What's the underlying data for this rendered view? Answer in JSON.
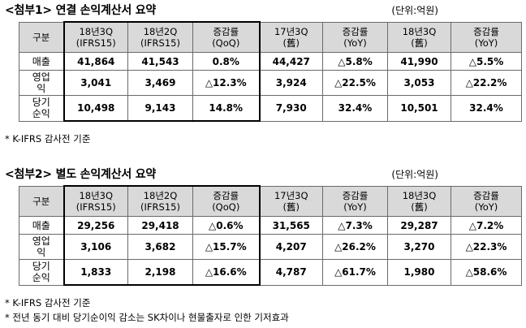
{
  "tables": [
    {
      "title": "<첨부1> 연결 손익계산서 요약",
      "unit": "(단위:억원)",
      "headers": [
        "구분",
        "18년3Q\n(IFRS15)",
        "18년2Q\n(IFRS15)",
        "증감률\n(QoQ)",
        "17년3Q\n(舊)",
        "증감률\n(YoY)",
        "18년3Q\n(舊)",
        "증감률\n(YoY)"
      ],
      "rows": [
        {
          "label": "매출",
          "values": [
            "41,864",
            "41,543",
            "0.8%",
            "44,427",
            "△5.8%",
            "41,990",
            "△5.5%"
          ]
        },
        {
          "label": "영업\n익",
          "values": [
            "3,041",
            "3,469",
            "△12.3%",
            "3,924",
            "△22.5%",
            "3,053",
            "△22.2%"
          ]
        },
        {
          "label": "당기\n순익",
          "values": [
            "10,498",
            "9,143",
            "14.8%",
            "7,930",
            "32.4%",
            "10,501",
            "32.4%"
          ]
        }
      ],
      "notes": [
        "* K-IFRS 감사전 기준"
      ]
    },
    {
      "title": "<첨부2> 별도 손익계산서 요약",
      "unit": "(단위:억원)",
      "headers": [
        "구분",
        "18년3Q\n(IFRS15)",
        "18년2Q\n(IFRS15)",
        "증감률\n(QoQ)",
        "17년3Q\n(舊)",
        "증감률\n(YoY)",
        "18년3Q\n(舊)",
        "증감률\n(YoY)"
      ],
      "rows": [
        {
          "label": "매출",
          "values": [
            "29,256",
            "29,418",
            "△0.6%",
            "31,565",
            "△7.3%",
            "29,287",
            "△7.2%"
          ]
        },
        {
          "label": "영업\n익",
          "values": [
            "3,106",
            "3,682",
            "△15.7%",
            "4,207",
            "△26.2%",
            "3,270",
            "△22.3%"
          ]
        },
        {
          "label": "당기\n순익",
          "values": [
            "1,833",
            "2,198",
            "△16.6%",
            "4,787",
            "△61.7%",
            "1,980",
            "△58.6%"
          ]
        }
      ],
      "notes": [
        "* K-IFRS 감사전 기준",
        "* 전년 동기 대비 당기순이익 감소는 SK차이나 현물출자로 인한 기저효과"
      ]
    }
  ]
}
